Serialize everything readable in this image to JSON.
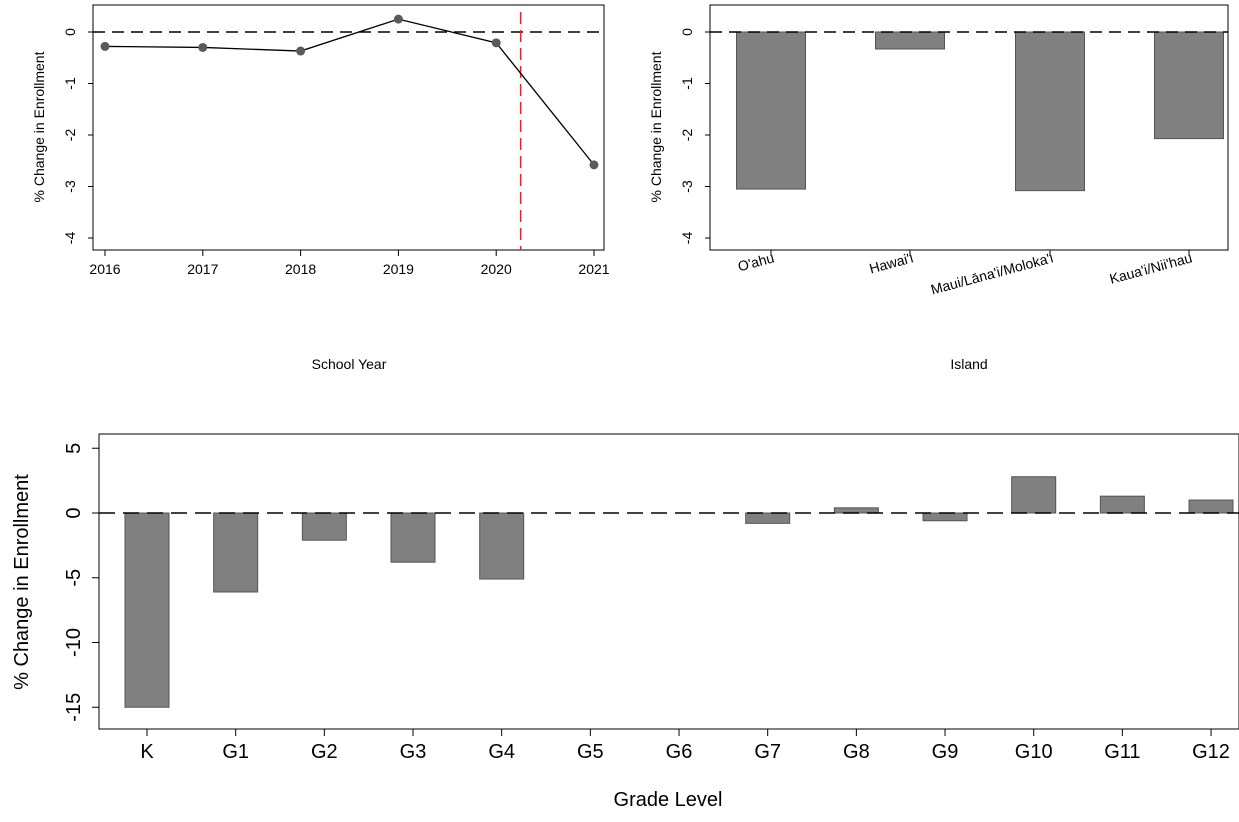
{
  "chart_data": [
    {
      "type": "line",
      "xlabel": "School Year",
      "ylabel": "% Change in Enrollment",
      "x": [
        2016,
        2017,
        2018,
        2019,
        2020,
        2021
      ],
      "series": [
        {
          "values": [
            -0.28,
            -0.3,
            -0.37,
            0.25,
            -0.21,
            -2.58
          ]
        }
      ],
      "xlim": [
        2016,
        2021
      ],
      "ylim": [
        -4,
        0
      ],
      "yticks": [
        0,
        -1,
        -2,
        -3,
        -4
      ],
      "reference_lines": {
        "zero_dashed": 0,
        "vertical_x": 2020.25
      },
      "colors": {
        "line": "#000000",
        "marker": "#5a5a5a",
        "vertical": "#e0262f"
      }
    },
    {
      "type": "bar",
      "xlabel": "Island",
      "ylabel": "% Change in Enrollment",
      "categories": [
        "O'ahu",
        "Hawai'i",
        "Maui/Lāna'i/Moloka'i",
        "Kaua'i/Nii'hau"
      ],
      "values": [
        -3.05,
        -0.33,
        -3.08,
        -2.07
      ],
      "ylim": [
        -4,
        0
      ],
      "yticks": [
        0,
        -1,
        -2,
        -3,
        -4
      ],
      "colors": {
        "bar": "#808080",
        "edge": "#555555"
      }
    },
    {
      "type": "bar",
      "xlabel": "Grade Level",
      "ylabel": "% Change in Enrollment",
      "categories": [
        "K",
        "G1",
        "G2",
        "G3",
        "G4",
        "G5",
        "G6",
        "G7",
        "G8",
        "G9",
        "G10",
        "G11",
        "G12"
      ],
      "values": [
        -15.0,
        -6.1,
        -2.1,
        -3.8,
        -5.1,
        0,
        0,
        -0.8,
        0.4,
        -0.6,
        2.8,
        1.3,
        1.0
      ],
      "ylim": [
        -15,
        5
      ],
      "yticks": [
        5,
        0,
        -5,
        -10,
        -15
      ],
      "colors": {
        "bar": "#808080",
        "edge": "#555555"
      }
    }
  ]
}
